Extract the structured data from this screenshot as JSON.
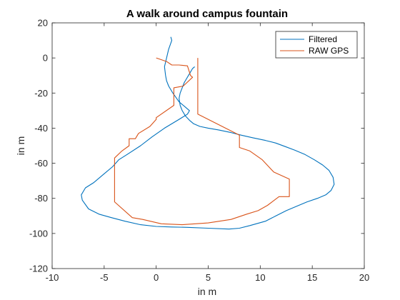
{
  "chart_data": {
    "type": "line",
    "title": "A walk around campus fountain",
    "xlabel": "in m",
    "ylabel": "in m",
    "xlim": [
      -10,
      20
    ],
    "ylim": [
      -120,
      20
    ],
    "xticks": [
      -10,
      -5,
      0,
      5,
      10,
      15,
      20
    ],
    "yticks": [
      -120,
      -100,
      -80,
      -60,
      -40,
      -20,
      0,
      20
    ],
    "grid": false,
    "legend_position": "top-right",
    "series": [
      {
        "name": "Filtered",
        "color": "#0072BD",
        "x": [
          1.4,
          1.5,
          1.2,
          1.0,
          0.8,
          0.9,
          1.0,
          1.2,
          1.6,
          2.2,
          2.8,
          3.2,
          3.0,
          2.2,
          0.8,
          -0.4,
          -1.5,
          -2.8,
          -3.6,
          -4.2,
          -5.0,
          -6.0,
          -6.8,
          -7.2,
          -7.1,
          -6.5,
          -5.5,
          -4.3,
          -3.0,
          -1.5,
          0.0,
          1.5,
          3.0,
          5.0,
          7.0,
          8.0,
          9.0,
          10.5,
          11.5,
          12.5,
          13.5,
          14.5,
          15.5,
          16.3,
          16.8,
          17.1,
          17.0,
          16.6,
          16.0,
          15.2,
          14.3,
          13.3,
          12.4,
          11.5,
          10.5,
          9.3,
          8.2,
          7.2,
          6.0,
          5.0,
          4.2,
          3.6,
          3.2,
          2.8,
          2.5,
          2.3,
          2.2,
          2.3,
          2.5,
          2.7,
          2.9,
          3.1,
          3.3,
          3.5,
          3.7
        ],
        "y": [
          12,
          10,
          5,
          0,
          -5,
          -10,
          -13,
          -16,
          -20,
          -25,
          -28,
          -30,
          -32,
          -35,
          -40,
          -45,
          -50,
          -55,
          -58,
          -62,
          -66,
          -71,
          -74,
          -78,
          -81,
          -86,
          -89,
          -91,
          -93,
          -95,
          -96,
          -96.3,
          -96.5,
          -97,
          -97.5,
          -97,
          -95.5,
          -93,
          -90,
          -87,
          -84.5,
          -82,
          -80,
          -78,
          -75.5,
          -72,
          -68,
          -64,
          -61,
          -58,
          -55,
          -52.5,
          -50.5,
          -48.5,
          -47,
          -45.5,
          -44,
          -42.5,
          -41,
          -40,
          -39,
          -37.5,
          -35.5,
          -33,
          -30,
          -27,
          -23,
          -20,
          -17,
          -14,
          -12,
          -10,
          -8,
          -6,
          -5
        ]
      },
      {
        "name": "RAW GPS",
        "color": "#D95319",
        "x": [
          0.0,
          1.0,
          1.5,
          2.2,
          3.0,
          3.3,
          3.5,
          2.6,
          1.7,
          1.7,
          0.0,
          0.0,
          0.0,
          -0.6,
          -1.7,
          -2.0,
          -2.6,
          -2.6,
          -3.3,
          -4.0,
          -4.0,
          -2.3,
          -1.3,
          0.5,
          2.5,
          5.0,
          7.2,
          8.7,
          9.8,
          10.7,
          11.8,
          12.8,
          12.8,
          11.3,
          10.2,
          9.0,
          8.0,
          8.0,
          6.0,
          4.0,
          4.0,
          4.0
        ],
        "y": [
          0,
          -2,
          -4,
          -4,
          -4.5,
          -10,
          -11,
          -16,
          -17,
          -27,
          -34,
          -34,
          -35,
          -39,
          -43,
          -46,
          -46,
          -50,
          -53,
          -57,
          -82,
          -91,
          -92,
          -94.5,
          -95,
          -94,
          -92,
          -89,
          -87,
          -84,
          -79,
          -79,
          -69,
          -65,
          -58,
          -53,
          -51,
          -44,
          -38,
          -32,
          -28,
          0
        ]
      }
    ]
  }
}
